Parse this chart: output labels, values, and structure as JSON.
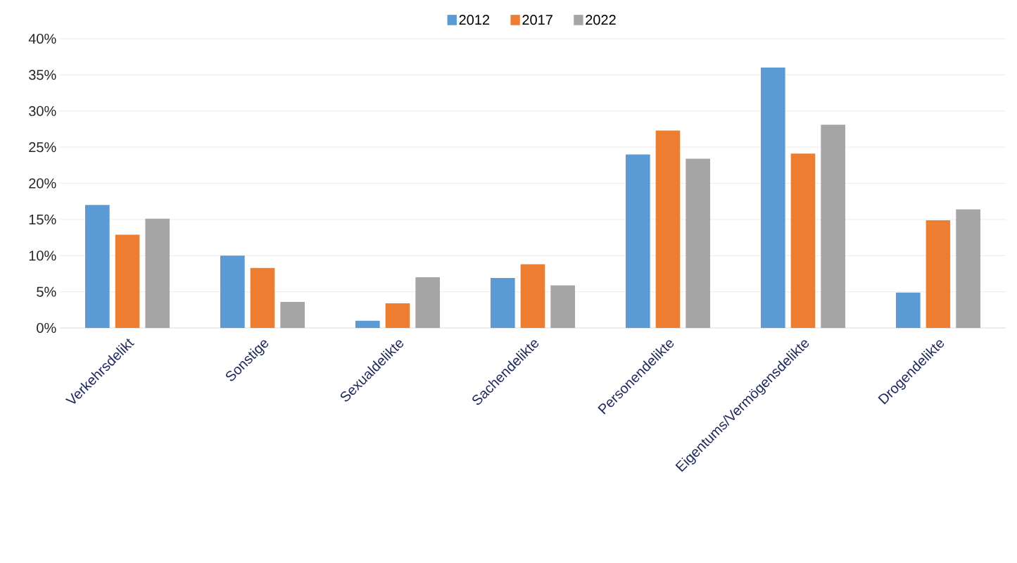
{
  "chart_data": {
    "type": "bar",
    "categories": [
      "Verkehrsdelikt",
      "Sonstige",
      "Sexualdelikte",
      "Sachendelikte",
      "Personendelikte",
      "Eigentums/Vermögensdelikte",
      "Drogendelikte"
    ],
    "series": [
      {
        "name": "2012",
        "color": "#5b9bd5",
        "values": [
          17,
          10,
          1,
          6.9,
          24,
          36,
          4.9
        ]
      },
      {
        "name": "2017",
        "color": "#ed7d31",
        "values": [
          12.9,
          8.3,
          3.4,
          8.8,
          27.3,
          24.1,
          14.9
        ]
      },
      {
        "name": "2022",
        "color": "#a5a5a5",
        "values": [
          15.1,
          3.6,
          7,
          5.9,
          23.4,
          28.1,
          16.4
        ]
      }
    ],
    "ylim": [
      0,
      40
    ],
    "yticks": [
      {
        "value": 0,
        "label": "0%"
      },
      {
        "value": 5,
        "label": "5%"
      },
      {
        "value": 10,
        "label": "10%"
      },
      {
        "value": 15,
        "label": "15%"
      },
      {
        "value": 20,
        "label": "20%"
      },
      {
        "value": 25,
        "label": "25%"
      },
      {
        "value": 30,
        "label": "30%"
      },
      {
        "value": 35,
        "label": "35%"
      },
      {
        "value": 40,
        "label": "40%"
      }
    ],
    "grid": "y",
    "legend": "top"
  }
}
